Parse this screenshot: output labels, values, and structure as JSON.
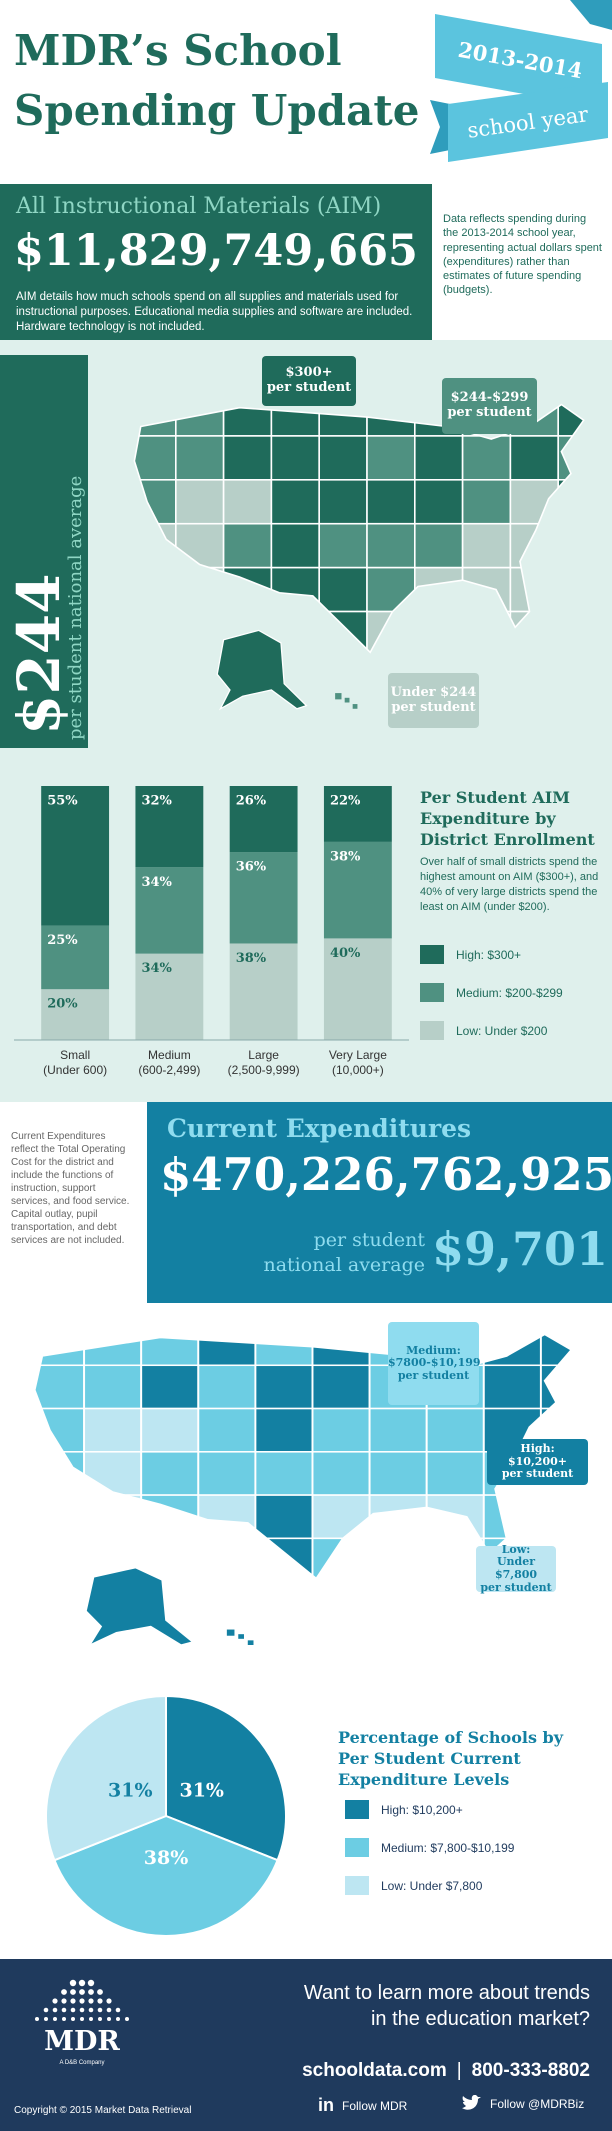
{
  "header": {
    "title_line_1": "MDR’s School",
    "title_line_2": "Spending Update",
    "ribbon_year": "2013-2014",
    "ribbon_text": "school year"
  },
  "aim": {
    "title": "All Instructional Materials (AIM)",
    "total": "$11,829,749,665",
    "description": "AIM details how much schools spend on all supplies and materials used for instructional purposes. Educational media supplies and software are included. Hardware technology is not included.",
    "note": "Data reflects spending during the 2013-2014 school year, representing actual dollars spent (expenditures) rather than estimates of future spending (budgets)."
  },
  "aim_map": {
    "average": "$244",
    "average_label": "per student national average",
    "callouts": [
      {
        "range": "$300+",
        "unit": "per student"
      },
      {
        "range": "$244-$299",
        "unit": "per student"
      },
      {
        "range": "Under $244",
        "unit": "per student"
      }
    ]
  },
  "current": {
    "title": "Current Expenditures",
    "total": "$470,226,762,925",
    "average_label_1": "per student",
    "average_label_2": "national average",
    "average": "$9,701",
    "note": "Current Expenditures reflect the Total Operating Cost for the district and include the functions of instruction, support services, and food service. Capital outlay, pupil transportation, and debt services are not included."
  },
  "current_map": {
    "callouts": [
      {
        "range": "Medium:",
        "detail": "$7800-$10,199",
        "unit": "per student"
      },
      {
        "range": "High:",
        "detail": "$10,200+",
        "unit": "per student"
      },
      {
        "range": "Low:",
        "detail": "Under $7,800",
        "unit": "per student"
      }
    ]
  },
  "chart_data": [
    {
      "type": "bar",
      "stacked": true,
      "title": "Per Student AIM Expenditure by District Enrollment",
      "description": "Over half of small districts spend the highest amount on AIM ($300+), and 40% of very large districts spend the least on AIM (under $200).",
      "categories": [
        "Small",
        "Medium",
        "Large",
        "Very Large"
      ],
      "category_details": [
        "(Under 600)",
        "(600-2,499)",
        "(2,500-9,999)",
        "(10,000+)"
      ],
      "series": [
        {
          "name": "High: $300+",
          "color": "#1f6b5b",
          "values": [
            55,
            32,
            26,
            22
          ],
          "value_labels": [
            "55%",
            "32%",
            "26%",
            "22%"
          ]
        },
        {
          "name": "Medium: $200-$299",
          "color": "#4f9181",
          "values": [
            25,
            34,
            36,
            38
          ],
          "value_labels": [
            "25%",
            "34%",
            "36%",
            "38%"
          ]
        },
        {
          "name": "Low: Under $200",
          "color": "#b7cfc8",
          "values": [
            20,
            34,
            38,
            40
          ],
          "value_labels": [
            "20%",
            "34%",
            "38%",
            "40%"
          ]
        }
      ],
      "ylim": [
        0,
        100
      ]
    },
    {
      "type": "pie",
      "title": "Percentage of Schools by Per Student Current Expenditure Levels",
      "categories": [
        "High: $10,200+",
        "Medium: $7,800-$10,199",
        "Low: Under $7,800"
      ],
      "values": [
        31,
        38,
        31
      ],
      "value_labels": [
        "31%",
        "38%",
        "31%"
      ],
      "colors": [
        "#1380a2",
        "#6ccde3",
        "#bde6f2"
      ]
    }
  ],
  "footer": {
    "question_line_1": "Want to learn more about trends",
    "question_line_2": "in the education market?",
    "website": "schooldata.com",
    "separator": "|",
    "phone": "800-333-8802",
    "linkedin_icon": "in",
    "linkedin": "Follow MDR",
    "twitter": "Follow @MDRBiz",
    "logo": "MDR",
    "logo_tagline": "A D&B Company",
    "copyright": "Copyright © 2015 Market Data Retrieval"
  }
}
